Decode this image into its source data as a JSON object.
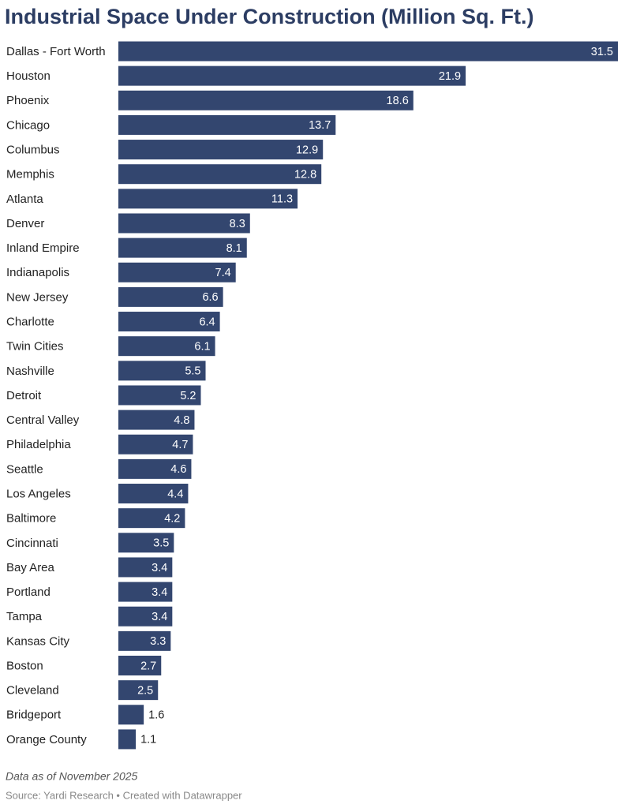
{
  "chart_data": {
    "type": "bar",
    "orientation": "horizontal",
    "title": "Industrial Space Under Construction (Million Sq. Ft.)",
    "categories": [
      "Dallas - Fort Worth",
      "Houston",
      "Phoenix",
      "Chicago",
      "Columbus",
      "Memphis",
      "Atlanta",
      "Denver",
      "Inland Empire",
      "Indianapolis",
      "New Jersey",
      "Charlotte",
      "Twin Cities",
      "Nashville",
      "Detroit",
      "Central Valley",
      "Philadelphia",
      "Seattle",
      "Los Angeles",
      "Baltimore",
      "Cincinnati",
      "Bay Area",
      "Portland",
      "Tampa",
      "Kansas City",
      "Boston",
      "Cleveland",
      "Bridgeport",
      "Orange County"
    ],
    "values": [
      31.5,
      21.9,
      18.6,
      13.7,
      12.9,
      12.8,
      11.3,
      8.3,
      8.1,
      7.4,
      6.6,
      6.4,
      6.1,
      5.5,
      5.2,
      4.8,
      4.7,
      4.6,
      4.4,
      4.2,
      3.5,
      3.4,
      3.4,
      3.4,
      3.3,
      2.7,
      2.5,
      1.6,
      1.1
    ],
    "color": "#33466f",
    "notes": "Data as of November 2025",
    "source": "Source: Yardi Research • Created with Datawrapper"
  }
}
